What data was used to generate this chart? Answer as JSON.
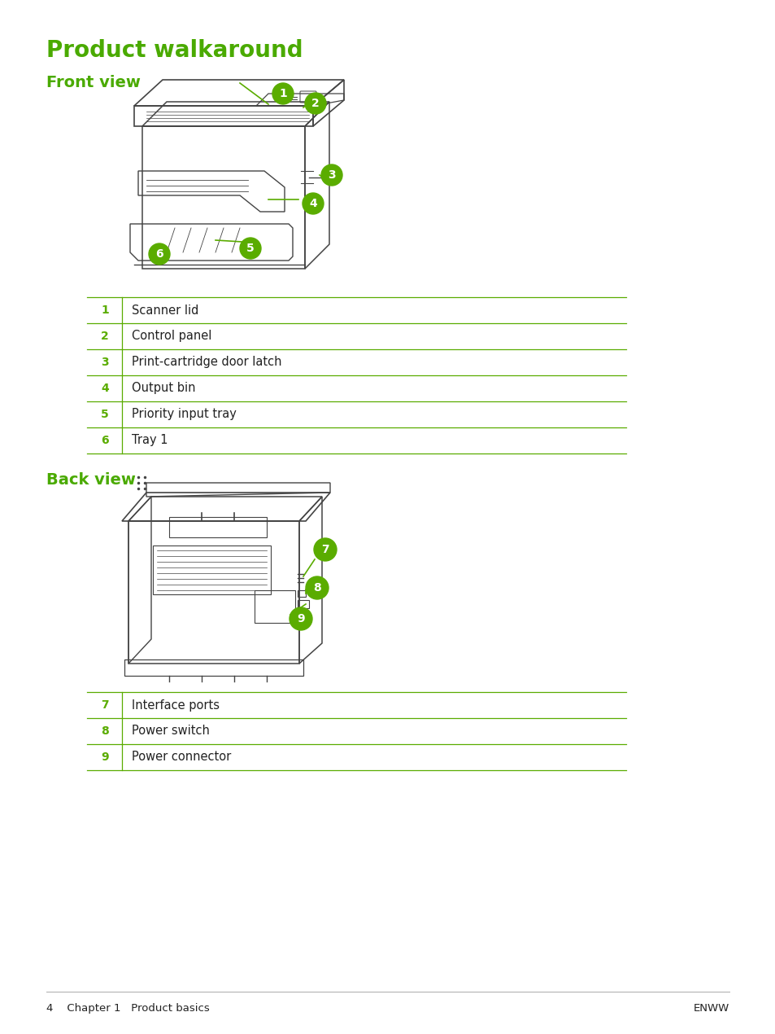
{
  "title": "Product walkaround",
  "title_color": "#4aaa00",
  "title_fontsize": 20,
  "section1_title": "Front view",
  "section2_title": "Back view",
  "section_title_color": "#4aaa00",
  "section_title_fontsize": 14,
  "front_items": [
    [
      "1",
      "Scanner lid"
    ],
    [
      "2",
      "Control panel"
    ],
    [
      "3",
      "Print-cartridge door latch"
    ],
    [
      "4",
      "Output bin"
    ],
    [
      "5",
      "Priority input tray"
    ],
    [
      "6",
      "Tray 1"
    ]
  ],
  "back_items": [
    [
      "7",
      "Interface ports"
    ],
    [
      "8",
      "Power switch"
    ],
    [
      "9",
      "Power connector"
    ]
  ],
  "number_color": "#5aac00",
  "line_color": "#5aac00",
  "text_color": "#222222",
  "bg_color": "#ffffff",
  "footer_left": "4    Chapter 1   Product basics",
  "footer_right": "ENWW",
  "item_fontsize": 10.5,
  "number_fontsize": 10
}
